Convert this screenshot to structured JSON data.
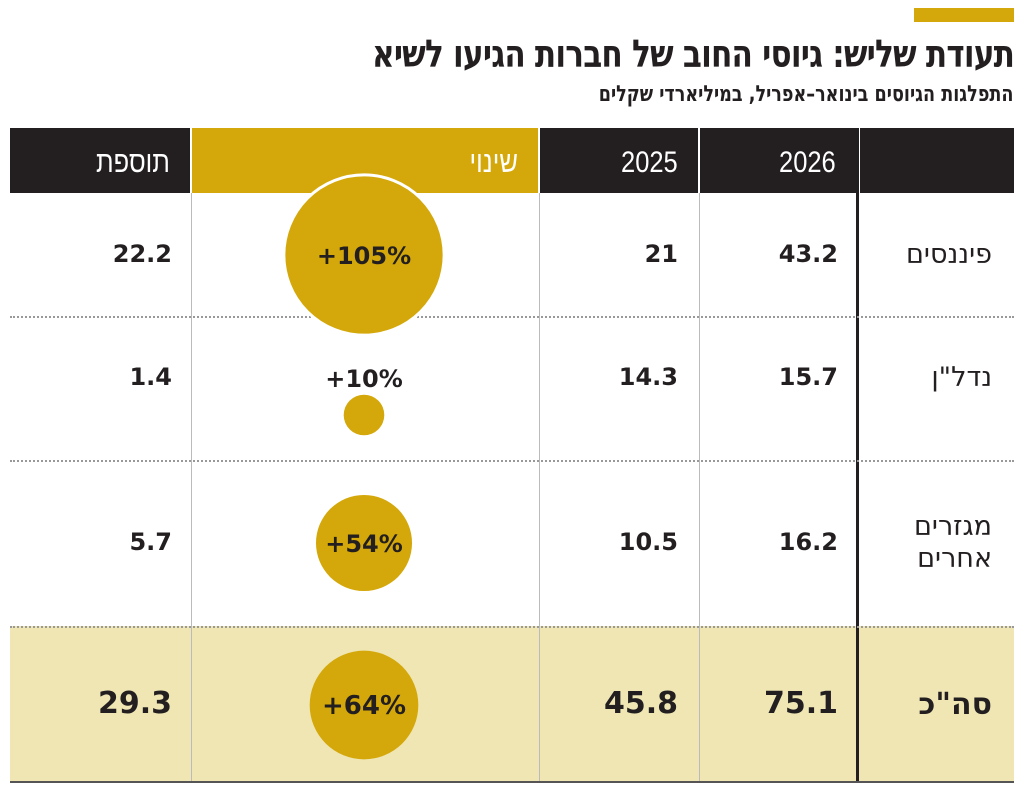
{
  "title": "תעודת שליש: גיוסי החוב של חברות הגיעו לשיא",
  "subtitle": "התפלגות הגיוסים בינואר–אפריל, במיליארדי שקלים",
  "colors": {
    "accent": "#d4a80a",
    "header": "#231f20",
    "total_row": "#efe6b4"
  },
  "chart_data": {
    "type": "table",
    "columns": [
      "",
      "2026",
      "2025",
      "שינוי",
      "תוספת"
    ],
    "rows": [
      {
        "label": "פיננסים",
        "y2026": "43.2",
        "y2025": "21",
        "change": "+105%",
        "change_value": 105,
        "addition": "22.2"
      },
      {
        "label": "נדל\"ן",
        "y2026": "15.7",
        "y2025": "14.3",
        "change": "+10%",
        "change_value": 10,
        "addition": "1.4"
      },
      {
        "label": "מגזרים אחרים",
        "y2026": "16.2",
        "y2025": "10.5",
        "change": "+54%",
        "change_value": 54,
        "addition": "5.7"
      },
      {
        "label": "סה\"כ",
        "y2026": "75.1",
        "y2025": "45.8",
        "change": "+64%",
        "change_value": 64,
        "addition": "29.3",
        "total": true
      }
    ]
  }
}
